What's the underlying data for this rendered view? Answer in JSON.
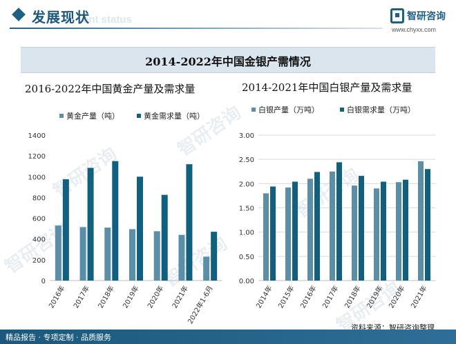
{
  "header": {
    "section_title": "发展现状",
    "section_subtitle": "ent status",
    "logo_name": "智研咨询",
    "logo_url": "www.chyxx.com"
  },
  "main_title": "2014-2022年中国金银产需情况",
  "watermark_text": "智研咨询",
  "footer": {
    "left_text": "精品报告 · 专项定制 · 品质服务",
    "source": "资料来源：智研咨询整理"
  },
  "colors": {
    "light_bar": "#5b8fa8",
    "dark_bar": "#12607f",
    "accent": "#1d5f85"
  },
  "chart_data": [
    {
      "type": "bar",
      "title": "2016-2022年中国黄金产量及需求量",
      "categories": [
        "2016年",
        "2017年",
        "2018年",
        "2019年",
        "2020年",
        "2021年",
        "2022年1-6月"
      ],
      "series": [
        {
          "name": "黄金产量（吨）",
          "values": [
            530,
            515,
            510,
            495,
            475,
            440,
            230
          ]
        },
        {
          "name": "黄金需求量（吨）",
          "values": [
            975,
            1085,
            1150,
            1000,
            825,
            1120,
            470
          ]
        }
      ],
      "yticks": [
        "0",
        "200",
        "400",
        "600",
        "800",
        "1000",
        "1200",
        "1400"
      ],
      "ylim": [
        0,
        1400
      ],
      "legend": "top-left",
      "grid": false
    },
    {
      "type": "bar",
      "title": "2014-2021年中国白银产量及需求量",
      "categories": [
        "2014年",
        "2015年",
        "2016年",
        "2017年",
        "2018年",
        "2019年",
        "2020年",
        "2021年"
      ],
      "series": [
        {
          "name": "白银产量（万吨）",
          "values": [
            1.8,
            1.92,
            2.1,
            2.25,
            1.96,
            1.9,
            2.03,
            2.46
          ]
        },
        {
          "name": "白银需求量（万吨）",
          "values": [
            1.94,
            2.04,
            2.24,
            2.44,
            2.16,
            2.04,
            2.08,
            2.3
          ]
        }
      ],
      "yticks": [
        "0.00",
        "0.50",
        "1.00",
        "1.50",
        "2.00",
        "2.50",
        "3.00"
      ],
      "ylim": [
        0,
        3
      ],
      "legend": "top-left",
      "grid": true
    }
  ]
}
